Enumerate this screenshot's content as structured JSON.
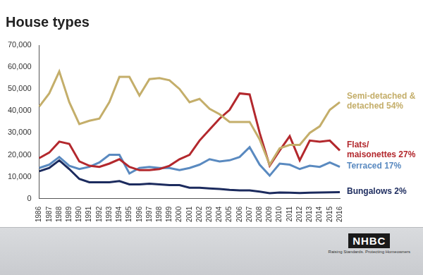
{
  "chart_data": {
    "type": "line",
    "title": "House types",
    "categories": [
      "1986",
      "1987",
      "1988",
      "1989",
      "1990",
      "1991",
      "1992",
      "1993",
      "1994",
      "1995",
      "1996",
      "1997",
      "1998",
      "1999",
      "2000",
      "2001",
      "2002",
      "2003",
      "2004",
      "2005",
      "2006",
      "2007",
      "2008",
      "2009",
      "2010",
      "2011",
      "2012",
      "2013",
      "2014",
      "2015",
      "2016"
    ],
    "series": [
      {
        "name": "Semi-detached & detached 54%",
        "color": "#c4ae6a",
        "values": [
          42000,
          48000,
          58000,
          44000,
          34000,
          35500,
          36500,
          44000,
          55500,
          55500,
          47000,
          54500,
          55000,
          54000,
          50000,
          44000,
          45500,
          41000,
          38500,
          35000,
          35000,
          35000,
          27000,
          15500,
          23000,
          24500,
          24500,
          30000,
          33000,
          40500,
          44000
        ]
      },
      {
        "name": "Flats/ maisonettes 27%",
        "color": "#b3282d",
        "values": [
          18500,
          21000,
          26000,
          25000,
          17000,
          15000,
          14500,
          16000,
          18000,
          14500,
          13000,
          13000,
          13500,
          15000,
          18000,
          20000,
          26500,
          31500,
          36500,
          40500,
          48000,
          47500,
          30000,
          15000,
          22000,
          28500,
          17500,
          26500,
          26000,
          26500,
          22000
        ]
      },
      {
        "name": "Terraced 17%",
        "color": "#5a8ac0",
        "values": [
          14000,
          15500,
          19000,
          15000,
          13500,
          14500,
          16500,
          20000,
          20000,
          11500,
          14000,
          14500,
          14000,
          14000,
          13000,
          14000,
          15500,
          18000,
          17000,
          17500,
          19000,
          23500,
          15500,
          10500,
          16000,
          15500,
          13500,
          15000,
          14500,
          16500,
          14500
        ]
      },
      {
        "name": "Bungalows 2%",
        "color": "#1c2b5e",
        "values": [
          12500,
          14000,
          17500,
          13500,
          9000,
          7500,
          7500,
          7500,
          8000,
          6500,
          6500,
          6800,
          6500,
          6200,
          6200,
          5000,
          5000,
          4700,
          4400,
          4000,
          3800,
          3800,
          3200,
          2500,
          2800,
          2700,
          2600,
          2700,
          2800,
          2900,
          3000
        ]
      }
    ],
    "ylim": [
      0,
      70000
    ],
    "yticks": [
      0,
      {
        "value": 10000,
        "label": "10,000"
      },
      {
        "value": 20000,
        "label": "20,000"
      },
      {
        "value": 30000,
        "label": "30,000"
      },
      {
        "value": 40000,
        "label": "40,000"
      },
      {
        "value": 50000,
        "label": "50,000"
      },
      {
        "value": 60000,
        "label": "60,000"
      },
      {
        "value": 70000,
        "label": "70,000"
      }
    ],
    "grid": false
  },
  "logo": "NHBC",
  "tagline": "Raising Standards. Protecting Homeowners"
}
